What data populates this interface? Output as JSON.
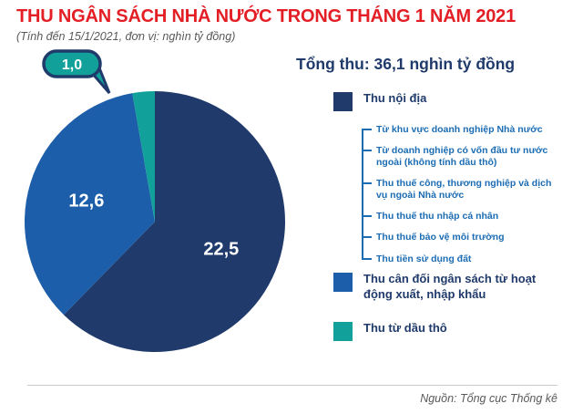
{
  "header": {
    "title": "THU NGÂN SÁCH NHÀ NƯỚC TRONG THÁNG 1 NĂM 2021",
    "subtitle": "(Tính đến 15/1/2021, đơn vị: nghìn tỷ đồng)"
  },
  "chart_data": {
    "type": "pie",
    "title": "Thu ngân sách nhà nước trong tháng 1 năm 2021",
    "unit": "nghìn tỷ đồng",
    "total": 36.1,
    "total_label": "Tổng thu: 36,1 nghìn tỷ đồng",
    "start_angle": -90,
    "direction": "clockwise",
    "slices": [
      {
        "name": "Thu nội địa",
        "value": 22.5,
        "label": "22,5",
        "color": "#1f3a6b"
      },
      {
        "name": "Thu cân đối ngân sách từ hoạt động xuất, nhập khẩu",
        "value": 12.6,
        "label": "12,6",
        "color": "#1c5ea9"
      },
      {
        "name": "Thu từ dầu thô",
        "value": 1.0,
        "label": "1,0",
        "color": "#12a19a",
        "callout": true
      }
    ]
  },
  "legend": {
    "sub_items": [
      "Từ khu vực doanh nghiệp Nhà nước",
      "Từ doanh nghiệp có vốn đầu tư nước ngoài (không tính dầu thô)",
      "Thu thuế công, thương nghiệp và dịch vụ ngoài Nhà nước",
      "Thu thuế thu nhập cá nhân",
      "Thu thuế bảo vệ môi trường",
      "Thu tiền sử dụng đất"
    ]
  },
  "colors": {
    "title_red": "#e31e25",
    "navy": "#1f3a6b",
    "blue": "#1c5ea9",
    "teal": "#12a19a",
    "sub_text_blue": "#1b6cb3",
    "muted_text": "#58595b"
  },
  "footer": {
    "source": "Nguồn: Tổng cục Thống kê"
  }
}
